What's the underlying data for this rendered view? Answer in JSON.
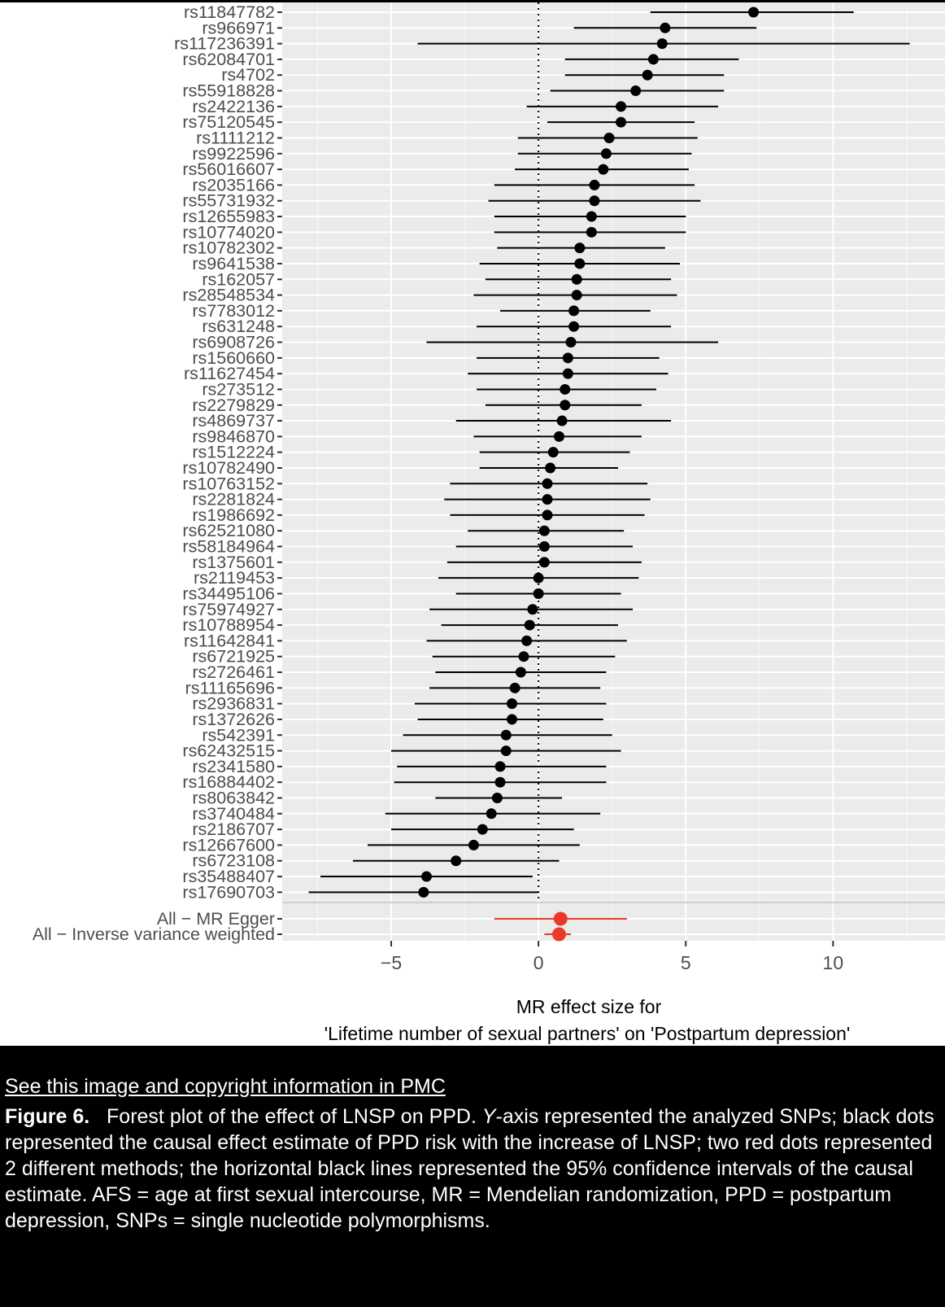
{
  "chart_data": {
    "type": "scatter",
    "title": "",
    "xlabel_lines": [
      "MR effect size for",
      "'Lifetime number of sexual partners' on 'Postpartum depression'"
    ],
    "ylabel": "",
    "xlim": [
      -8.7,
      13.8
    ],
    "xticks": [
      -5,
      0,
      5,
      10
    ],
    "xtick_labels": [
      "−5",
      "0",
      "5",
      "10"
    ],
    "reference_line": 0,
    "grid": true,
    "colors": {
      "snp": "#000000",
      "method": "#e8392a",
      "panel": "#ebebeb",
      "grid": "#ffffff"
    },
    "snps": [
      {
        "label": "rs11847782",
        "b": 7.3,
        "lo": 3.8,
        "hi": 10.7
      },
      {
        "label": "rs966971",
        "b": 4.3,
        "lo": 1.2,
        "hi": 7.4
      },
      {
        "label": "rs117236391",
        "b": 4.2,
        "lo": -4.1,
        "hi": 12.6
      },
      {
        "label": "rs62084701",
        "b": 3.9,
        "lo": 0.9,
        "hi": 6.8
      },
      {
        "label": "rs4702",
        "b": 3.7,
        "lo": 0.9,
        "hi": 6.3
      },
      {
        "label": "rs55918828",
        "b": 3.3,
        "lo": 0.4,
        "hi": 6.3
      },
      {
        "label": "rs2422136",
        "b": 2.8,
        "lo": -0.4,
        "hi": 6.1
      },
      {
        "label": "rs75120545",
        "b": 2.8,
        "lo": 0.3,
        "hi": 5.3
      },
      {
        "label": "rs1111212",
        "b": 2.4,
        "lo": -0.7,
        "hi": 5.4
      },
      {
        "label": "rs9922596",
        "b": 2.3,
        "lo": -0.7,
        "hi": 5.2
      },
      {
        "label": "rs56016607",
        "b": 2.2,
        "lo": -0.8,
        "hi": 5.1
      },
      {
        "label": "rs2035166",
        "b": 1.9,
        "lo": -1.5,
        "hi": 5.3
      },
      {
        "label": "rs55731932",
        "b": 1.9,
        "lo": -1.7,
        "hi": 5.5
      },
      {
        "label": "rs12655983",
        "b": 1.8,
        "lo": -1.5,
        "hi": 5.0
      },
      {
        "label": "rs10774020",
        "b": 1.8,
        "lo": -1.5,
        "hi": 5.0
      },
      {
        "label": "rs10782302",
        "b": 1.4,
        "lo": -1.4,
        "hi": 4.3
      },
      {
        "label": "rs9641538",
        "b": 1.4,
        "lo": -2.0,
        "hi": 4.8
      },
      {
        "label": "rs162057",
        "b": 1.3,
        "lo": -1.8,
        "hi": 4.5
      },
      {
        "label": "rs28548534",
        "b": 1.3,
        "lo": -2.2,
        "hi": 4.7
      },
      {
        "label": "rs7783012",
        "b": 1.2,
        "lo": -1.3,
        "hi": 3.8
      },
      {
        "label": "rs631248",
        "b": 1.2,
        "lo": -2.1,
        "hi": 4.5
      },
      {
        "label": "rs6908726",
        "b": 1.1,
        "lo": -3.8,
        "hi": 6.1
      },
      {
        "label": "rs1560660",
        "b": 1.0,
        "lo": -2.1,
        "hi": 4.1
      },
      {
        "label": "rs11627454",
        "b": 1.0,
        "lo": -2.4,
        "hi": 4.4
      },
      {
        "label": "rs273512",
        "b": 0.9,
        "lo": -2.1,
        "hi": 4.0
      },
      {
        "label": "rs2279829",
        "b": 0.9,
        "lo": -1.8,
        "hi": 3.5
      },
      {
        "label": "rs4869737",
        "b": 0.8,
        "lo": -2.8,
        "hi": 4.5
      },
      {
        "label": "rs9846870",
        "b": 0.7,
        "lo": -2.2,
        "hi": 3.5
      },
      {
        "label": "rs1512224",
        "b": 0.5,
        "lo": -2.0,
        "hi": 3.1
      },
      {
        "label": "rs10782490",
        "b": 0.4,
        "lo": -2.0,
        "hi": 2.7
      },
      {
        "label": "rs10763152",
        "b": 0.3,
        "lo": -3.0,
        "hi": 3.7
      },
      {
        "label": "rs2281824",
        "b": 0.3,
        "lo": -3.2,
        "hi": 3.8
      },
      {
        "label": "rs1986692",
        "b": 0.3,
        "lo": -3.0,
        "hi": 3.6
      },
      {
        "label": "rs62521080",
        "b": 0.2,
        "lo": -2.4,
        "hi": 2.9
      },
      {
        "label": "rs58184964",
        "b": 0.2,
        "lo": -2.8,
        "hi": 3.2
      },
      {
        "label": "rs1375601",
        "b": 0.2,
        "lo": -3.1,
        "hi": 3.5
      },
      {
        "label": "rs2119453",
        "b": 0.0,
        "lo": -3.4,
        "hi": 3.4
      },
      {
        "label": "rs34495106",
        "b": 0.0,
        "lo": -2.8,
        "hi": 2.8
      },
      {
        "label": "rs75974927",
        "b": -0.2,
        "lo": -3.7,
        "hi": 3.2
      },
      {
        "label": "rs10788954",
        "b": -0.3,
        "lo": -3.3,
        "hi": 2.7
      },
      {
        "label": "rs11642841",
        "b": -0.4,
        "lo": -3.8,
        "hi": 3.0
      },
      {
        "label": "rs6721925",
        "b": -0.5,
        "lo": -3.6,
        "hi": 2.6
      },
      {
        "label": "rs2726461",
        "b": -0.6,
        "lo": -3.5,
        "hi": 2.3
      },
      {
        "label": "rs11165696",
        "b": -0.8,
        "lo": -3.7,
        "hi": 2.1
      },
      {
        "label": "rs2936831",
        "b": -0.9,
        "lo": -4.2,
        "hi": 2.3
      },
      {
        "label": "rs1372626",
        "b": -0.9,
        "lo": -4.1,
        "hi": 2.2
      },
      {
        "label": "rs542391",
        "b": -1.1,
        "lo": -4.6,
        "hi": 2.5
      },
      {
        "label": "rs62432515",
        "b": -1.1,
        "lo": -5.0,
        "hi": 2.8
      },
      {
        "label": "rs2341580",
        "b": -1.3,
        "lo": -4.8,
        "hi": 2.3
      },
      {
        "label": "rs16884402",
        "b": -1.3,
        "lo": -4.9,
        "hi": 2.3
      },
      {
        "label": "rs8063842",
        "b": -1.4,
        "lo": -3.5,
        "hi": 0.8
      },
      {
        "label": "rs3740484",
        "b": -1.6,
        "lo": -5.2,
        "hi": 2.1
      },
      {
        "label": "rs2186707",
        "b": -1.9,
        "lo": -5.0,
        "hi": 1.2
      },
      {
        "label": "rs12667600",
        "b": -2.2,
        "lo": -5.8,
        "hi": 1.4
      },
      {
        "label": "rs6723108",
        "b": -2.8,
        "lo": -6.3,
        "hi": 0.7
      },
      {
        "label": "rs35488407",
        "b": -3.8,
        "lo": -7.4,
        "hi": -0.2
      },
      {
        "label": "rs17690703",
        "b": -3.9,
        "lo": -7.8,
        "hi": 0.0
      }
    ],
    "methods": [
      {
        "label": "All − MR Egger",
        "b": 0.75,
        "lo": -1.5,
        "hi": 3.0
      },
      {
        "label": "All − Inverse variance weighted",
        "b": 0.7,
        "lo": 0.2,
        "hi": 1.1
      }
    ]
  },
  "source_link": "See this image and copyright information in PMC",
  "caption": {
    "label": "Figure 6.",
    "text_before": "Forest plot of the effect of LNSP on PPD.",
    "axis_italic": "Y",
    "text_after": "-axis represented the analyzed SNPs; black dots represented the causal effect estimate of PPD risk with the increase of LNSP; two red dots represented 2 different methods; the horizontal black lines represented the 95% confidence intervals of the causal estimate. AFS = age at first sexual intercourse, MR = Mendelian randomization, PPD = postpartum depression, SNPs = single nucleotide polymorphisms."
  }
}
